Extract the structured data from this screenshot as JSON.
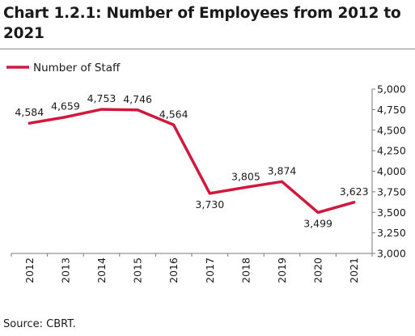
{
  "title": "Chart 1.2.1: Number of Employees from 2012 to 2021",
  "source": "Source: CBRT.",
  "chart_data": {
    "type": "line",
    "title": "Chart 1.2.1: Number of Employees from 2012 to 2021",
    "xlabel": "",
    "ylabel": "",
    "x": [
      "2012",
      "2013",
      "2014",
      "2015",
      "2016",
      "2017",
      "2018",
      "2019",
      "2020",
      "2021"
    ],
    "series": [
      {
        "name": "Number of Staff",
        "color": "#d1183c",
        "values": [
          4584,
          4659,
          4753,
          4746,
          4564,
          3730,
          3805,
          3874,
          3499,
          3623
        ],
        "labels": [
          "4,584",
          "4,659",
          "4,753",
          "4,746",
          "4,564",
          "3,730",
          "3,805",
          "3,874",
          "3,499",
          "3,623"
        ]
      }
    ],
    "ylim": [
      3000,
      5000
    ],
    "yticks": [
      3000,
      3250,
      3500,
      3750,
      4000,
      4250,
      4500,
      4750,
      5000
    ],
    "ytick_labels": [
      "3,000",
      "3,250",
      "3,500",
      "3,750",
      "4,000",
      "4,250",
      "4,500",
      "4,750",
      "5,000"
    ],
    "y_axis_side": "right",
    "legend_position": "top-left",
    "grid": false
  }
}
